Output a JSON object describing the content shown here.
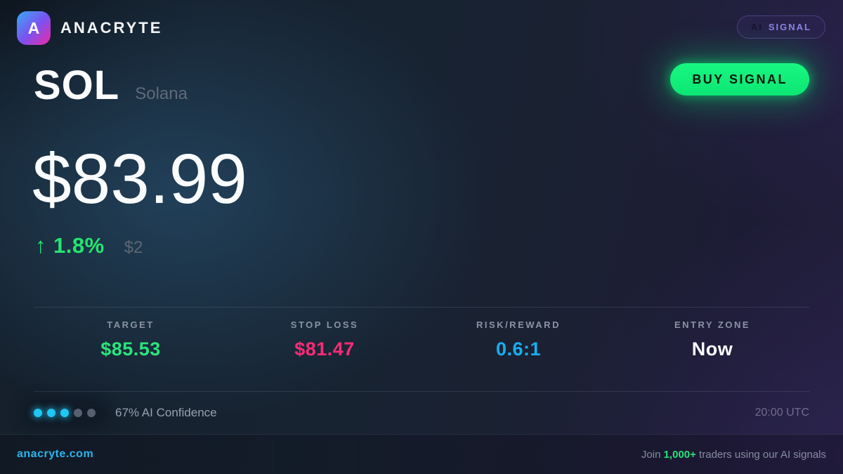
{
  "theme": {
    "accent_green": "#2ae57b",
    "button_green": "#0de674",
    "accent_pink": "#fb2b76",
    "accent_cyan": "#18aef0",
    "link_cyan": "#2ab5ee",
    "badge_purple": "#8e82e6"
  },
  "header": {
    "logo_letter": "A",
    "brand": "ANACRYTE",
    "badge": {
      "prefix": "AI",
      "label": "SIGNAL"
    }
  },
  "asset": {
    "symbol": "SOL",
    "name": "Solana"
  },
  "signal": {
    "action_label": "BUY SIGNAL"
  },
  "price": {
    "current": "$83.99",
    "change_arrow": "↑",
    "change_pct": "1.8%",
    "change_abs": "$2"
  },
  "stats": [
    {
      "label": "TARGET",
      "value": "$85.53"
    },
    {
      "label": "STOP LOSS",
      "value": "$81.47"
    },
    {
      "label": "RISK/REWARD",
      "value": "0.6:1"
    },
    {
      "label": "ENTRY ZONE",
      "value": "Now"
    }
  ],
  "confidence": {
    "dots_total": 5,
    "dots_active": 3,
    "label": "67% AI Confidence",
    "time": "20:00 UTC"
  },
  "footer": {
    "site": "anacryte.com",
    "cta_prefix": "Join ",
    "cta_highlight": "1,000+",
    "cta_suffix": " traders using our AI signals"
  }
}
